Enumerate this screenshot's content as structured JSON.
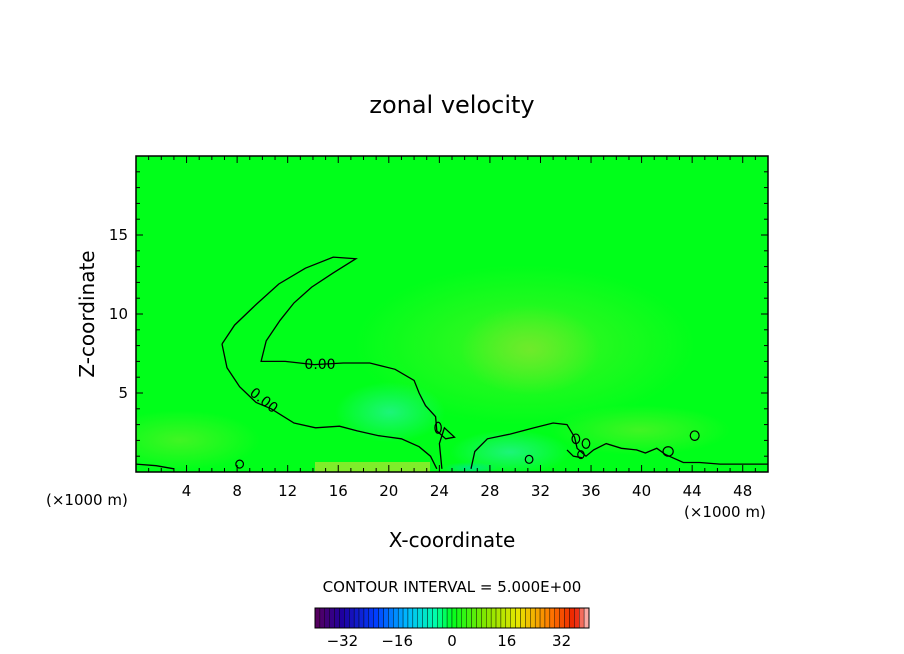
{
  "chart_data": {
    "type": "heatmap",
    "title": "zonal velocity",
    "xlabel": "X-coordinate",
    "ylabel": "Z-coordinate",
    "x_unit_left": "(×1000 m)",
    "x_unit_right": "(×1000 m)",
    "xlim": [
      0,
      50
    ],
    "ylim": [
      0,
      20
    ],
    "x_ticks": [
      4,
      8,
      12,
      16,
      20,
      24,
      28,
      32,
      36,
      40,
      44,
      48
    ],
    "y_ticks": [
      5,
      10,
      15
    ],
    "contour_interval_text": "CONTOUR INTERVAL = 5.000E+00",
    "contour_label": "0.00",
    "colorbar": {
      "vmin": -40,
      "vmax": 40,
      "ticks": [
        -32,
        -16,
        0,
        16,
        32
      ],
      "tick_labels": [
        "−32",
        "−16",
        "0",
        "16",
        "32"
      ]
    },
    "background_value": 0,
    "colors": {
      "field_zero": "#00ff1a",
      "frame": "#000000"
    },
    "zero_contours": [
      [
        [
          6.8,
          8.1
        ],
        [
          7.2,
          6.6
        ],
        [
          8.2,
          5.4
        ],
        [
          9.5,
          4.4
        ],
        [
          10.7,
          4.0
        ],
        [
          12.5,
          3.1
        ],
        [
          14.2,
          2.8
        ],
        [
          16.1,
          2.9
        ],
        [
          17.5,
          2.6
        ],
        [
          19.2,
          2.3
        ],
        [
          21.0,
          2.1
        ],
        [
          22.4,
          1.6
        ],
        [
          23.3,
          1.0
        ],
        [
          23.8,
          0.2
        ]
      ],
      [
        [
          6.8,
          8.1
        ],
        [
          7.8,
          9.3
        ],
        [
          9.5,
          10.6
        ],
        [
          11.3,
          11.9
        ],
        [
          13.4,
          12.9
        ],
        [
          15.6,
          13.6
        ],
        [
          17.4,
          13.5
        ],
        [
          15.6,
          12.6
        ],
        [
          13.9,
          11.7
        ],
        [
          12.5,
          10.7
        ],
        [
          11.4,
          9.6
        ],
        [
          10.3,
          8.3
        ],
        [
          9.9,
          7.0
        ],
        [
          11.8,
          7.0
        ],
        [
          14.1,
          6.8
        ],
        [
          16.4,
          6.9
        ],
        [
          18.5,
          6.9
        ],
        [
          20.5,
          6.5
        ],
        [
          22.0,
          5.8
        ],
        [
          22.4,
          5.0
        ],
        [
          22.9,
          4.2
        ],
        [
          23.7,
          3.5
        ],
        [
          23.8,
          2.6
        ],
        [
          24.5,
          2.1
        ],
        [
          25.2,
          2.2
        ],
        [
          24.4,
          2.8
        ],
        [
          24.0,
          1.8
        ],
        [
          24.2,
          0.2
        ]
      ],
      [
        [
          26.5,
          0.2
        ],
        [
          26.8,
          1.3
        ],
        [
          27.8,
          2.1
        ],
        [
          29.6,
          2.4
        ],
        [
          31.5,
          2.8
        ],
        [
          33.0,
          3.1
        ],
        [
          34.1,
          3.0
        ],
        [
          34.7,
          2.2
        ],
        [
          34.9,
          1.5
        ],
        [
          35.6,
          1.0
        ],
        [
          36.2,
          1.4
        ],
        [
          37.2,
          1.8
        ],
        [
          38.4,
          1.5
        ],
        [
          39.6,
          1.4
        ],
        [
          40.3,
          1.2
        ],
        [
          41.2,
          1.5
        ],
        [
          41.9,
          1.1
        ],
        [
          43.3,
          0.6
        ],
        [
          44.6,
          0.6
        ],
        [
          46.2,
          0.5
        ],
        [
          48.0,
          0.5
        ],
        [
          50.0,
          0.5
        ]
      ],
      [
        [
          0.0,
          0.5
        ],
        [
          1.6,
          0.4
        ],
        [
          3.0,
          0.2
        ]
      ],
      [
        [
          34.1,
          1.4
        ],
        [
          34.6,
          1.0
        ],
        [
          35.3,
          0.9
        ]
      ]
    ],
    "small_zero_contours": [
      [
        23.9,
        2.8,
        0.25,
        0.35
      ],
      [
        31.1,
        0.8,
        0.3,
        0.25
      ],
      [
        34.8,
        2.1,
        0.3,
        0.3
      ],
      [
        35.6,
        1.8,
        0.3,
        0.3
      ],
      [
        35.2,
        1.1,
        0.25,
        0.25
      ],
      [
        42.1,
        1.3,
        0.4,
        0.3
      ],
      [
        44.2,
        2.3,
        0.35,
        0.3
      ],
      [
        8.2,
        0.5,
        0.3,
        0.25
      ]
    ]
  }
}
